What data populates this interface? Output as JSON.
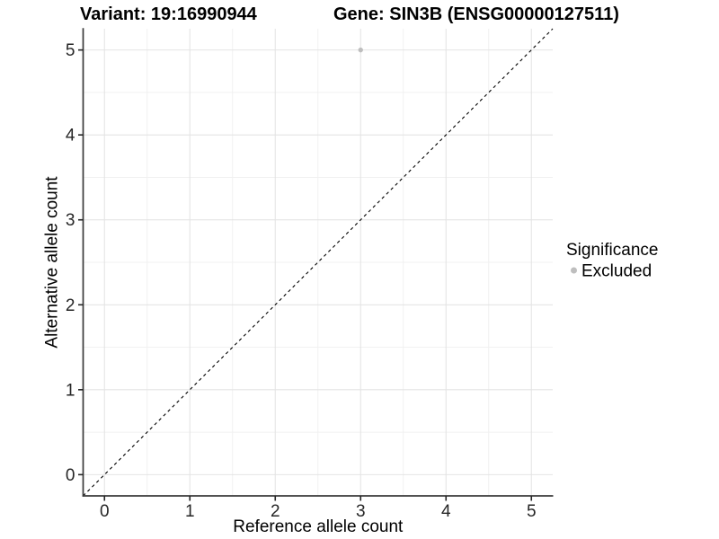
{
  "header": {
    "variant_title": "Variant: 19:16990944",
    "gene_title": "Gene: SIN3B (ENSG00000127511)"
  },
  "chart_data": {
    "type": "scatter",
    "xlabel": "Reference allele count",
    "ylabel": "Alternative allele count",
    "xlim": [
      -0.25,
      5.25
    ],
    "ylim": [
      -0.25,
      5.25
    ],
    "x_ticks": [
      0,
      1,
      2,
      3,
      4,
      5
    ],
    "y_ticks": [
      0,
      1,
      2,
      3,
      4,
      5
    ],
    "grid": {
      "major": true,
      "minor": true
    },
    "points": [
      {
        "x": 3,
        "y": 5,
        "significance": "Excluded"
      }
    ],
    "identity_line": {
      "style": "dashed",
      "from": [
        -0.25,
        -0.25
      ],
      "to": [
        5.25,
        5.25
      ],
      "color": "#000000"
    },
    "legend": {
      "title": "Significance",
      "position": "right",
      "entries": [
        {
          "label": "Excluded",
          "color": "#bebebe"
        }
      ]
    },
    "colors": {
      "background": "#ffffff",
      "grid_major": "#e4e4e4",
      "grid_minor": "#f1f1f1",
      "axis_line": "#3a3a3a",
      "tick": "#262626",
      "point": "#bebebe"
    }
  }
}
